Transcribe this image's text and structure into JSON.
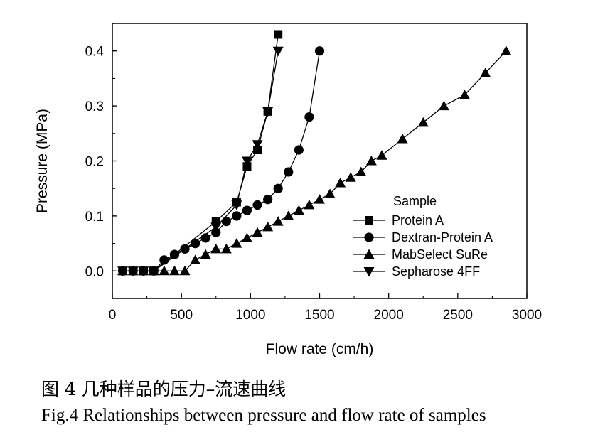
{
  "chart_data": {
    "type": "line",
    "title": "",
    "xlabel": "Flow rate (cm/h)",
    "ylabel": "Pressure (MPa)",
    "xlim": [
      0,
      3000
    ],
    "ylim": [
      -0.05,
      0.45
    ],
    "xticks": [
      0,
      500,
      1000,
      1500,
      2000,
      2500,
      3000
    ],
    "xtick_labels": [
      "0",
      "500",
      "1000",
      "1500",
      "2000",
      "2500",
      "3000"
    ],
    "yticks": [
      0.0,
      0.1,
      0.2,
      0.3,
      0.4
    ],
    "ytick_labels": [
      "0.0",
      "0.1",
      "0.2",
      "0.3",
      "0.4"
    ],
    "grid": false,
    "legend_title": "Sample",
    "legend_position": "lower-right",
    "series": [
      {
        "name": "Protein A",
        "marker": "square",
        "x": [
          75,
          150,
          225,
          300,
          750,
          900,
          975,
          1050,
          1125,
          1200
        ],
        "y": [
          0.0,
          0.0,
          0.0,
          0.0,
          0.09,
          0.125,
          0.19,
          0.22,
          0.29,
          0.43
        ]
      },
      {
        "name": "Dextran-Protein A",
        "marker": "circle",
        "x": [
          75,
          150,
          225,
          300,
          375,
          450,
          525,
          600,
          675,
          750,
          825,
          900,
          975,
          1050,
          1125,
          1200,
          1275,
          1350,
          1425,
          1500
        ],
        "y": [
          0.0,
          0.0,
          0.0,
          0.0,
          0.02,
          0.03,
          0.04,
          0.05,
          0.06,
          0.07,
          0.09,
          0.1,
          0.11,
          0.12,
          0.13,
          0.15,
          0.18,
          0.22,
          0.28,
          0.4
        ]
      },
      {
        "name": "MabSelect SuRe",
        "marker": "triangle-up",
        "x": [
          75,
          150,
          225,
          300,
          375,
          450,
          525,
          600,
          675,
          750,
          825,
          900,
          975,
          1050,
          1125,
          1200,
          1275,
          1350,
          1425,
          1500,
          1575,
          1650,
          1725,
          1800,
          1875,
          1950,
          2100,
          2250,
          2400,
          2550,
          2700,
          2850
        ],
        "y": [
          0.0,
          0.0,
          0.0,
          0.0,
          0.0,
          0.0,
          0.0,
          0.02,
          0.03,
          0.04,
          0.04,
          0.05,
          0.06,
          0.07,
          0.08,
          0.09,
          0.1,
          0.11,
          0.12,
          0.13,
          0.14,
          0.16,
          0.17,
          0.18,
          0.2,
          0.21,
          0.24,
          0.27,
          0.3,
          0.32,
          0.36,
          0.4
        ]
      },
      {
        "name": "Sepharose 4FF",
        "marker": "triangle-down",
        "x": [
          75,
          150,
          225,
          300,
          750,
          900,
          975,
          1050,
          1125,
          1200
        ],
        "y": [
          0.0,
          0.0,
          0.0,
          0.0,
          0.08,
          0.12,
          0.2,
          0.23,
          0.29,
          0.4
        ]
      }
    ]
  },
  "caption": {
    "chinese": "图 4  几种样品的压力–流速曲线",
    "english": "Fig.4 Relationships between pressure and flow rate of samples"
  }
}
